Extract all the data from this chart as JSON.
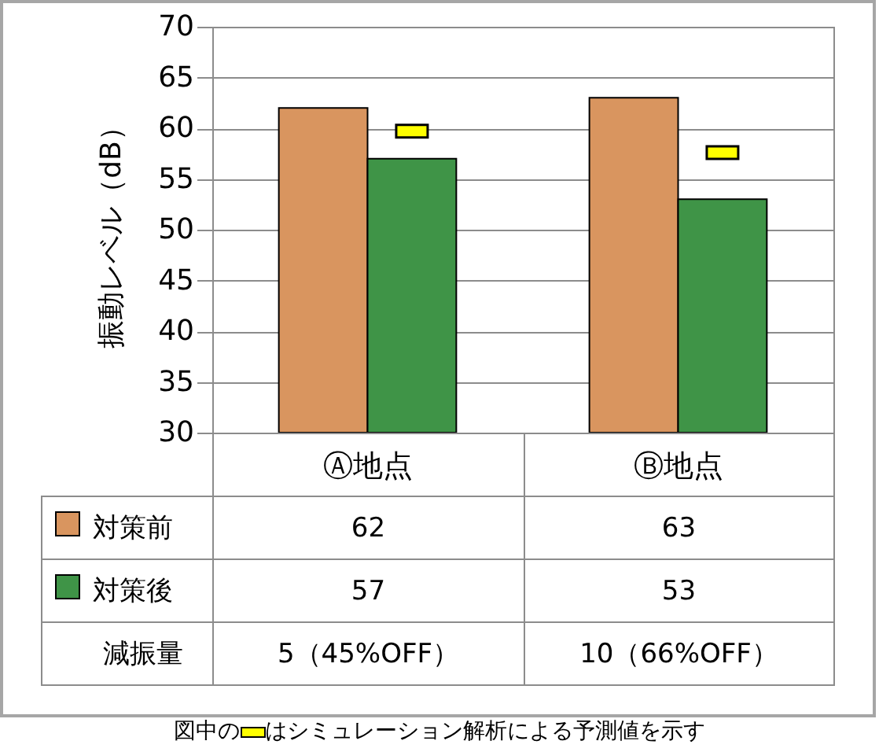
{
  "chart_data": {
    "type": "bar",
    "ylabel": "振動レベル（dB）",
    "categories": [
      "Ⓐ地点",
      "Ⓑ地点"
    ],
    "series": [
      {
        "name": "対策前",
        "color": "#d9955f",
        "values": [
          62,
          63
        ]
      },
      {
        "name": "対策後",
        "color": "#3f9447",
        "values": [
          57,
          53
        ]
      },
      {
        "type": "scatter",
        "x": [
          "Ⓐ地点",
          "Ⓑ地点"
        ],
        "values": [
          59.7,
          57.6
        ],
        "color": "#ffff00",
        "marker": "square",
        "value_labels": [
          null,
          null
        ]
      }
    ],
    "ylim": [
      30,
      70
    ],
    "yticks": [
      30,
      35,
      40,
      45,
      50,
      55,
      60,
      65,
      70
    ],
    "grid": true,
    "legend": "bottom",
    "data_labels": true,
    "annotations": [
      "減振量",
      "5（45%OFF）",
      "10（66%OFF）",
      "図中の",
      "はシミュレーション解析による予測値を示す"
    ]
  }
}
